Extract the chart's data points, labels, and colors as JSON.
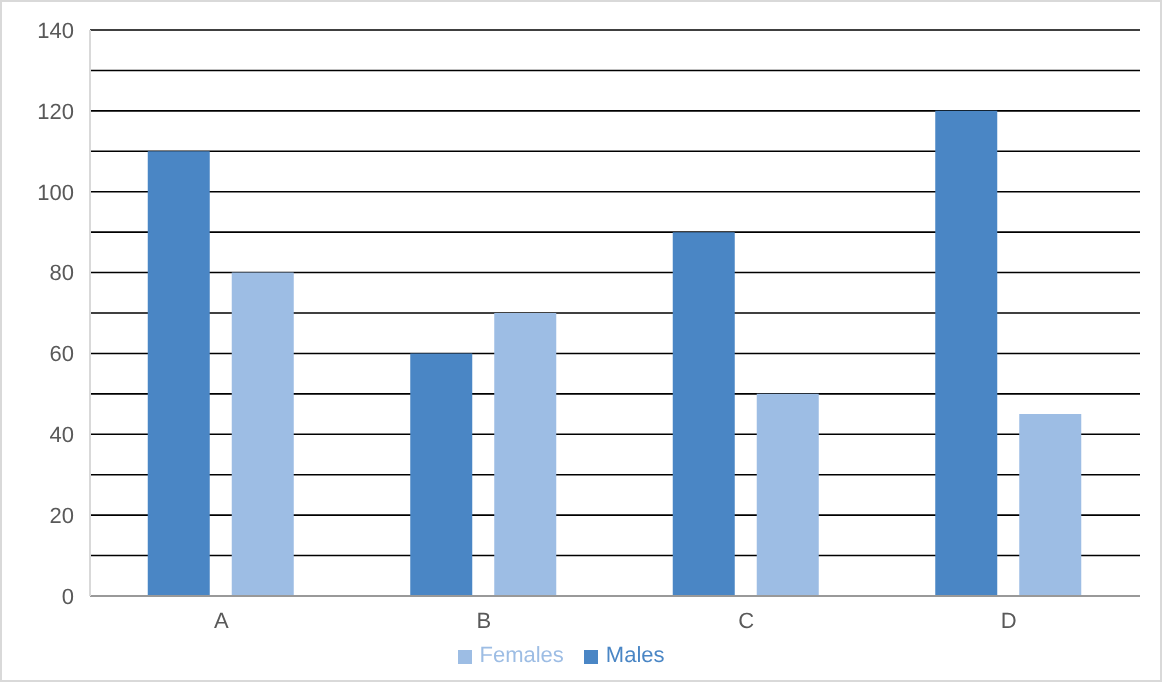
{
  "chart_data": {
    "type": "bar",
    "categories": [
      "A",
      "B",
      "C",
      "D"
    ],
    "series": [
      {
        "name": "Males",
        "color": "#4a86c5",
        "values": [
          110,
          60,
          90,
          120
        ]
      },
      {
        "name": "Females",
        "color": "#9dbde4",
        "values": [
          80,
          70,
          50,
          45
        ]
      }
    ],
    "ylim": [
      0,
      140
    ],
    "yticks": [
      0,
      {
        "value": 10,
        "label": null
      },
      20,
      {
        "value": 30,
        "label": null
      },
      40,
      {
        "value": 50,
        "label": null
      },
      60,
      {
        "value": 70,
        "label": null
      },
      80,
      {
        "value": 90,
        "label": null
      },
      100,
      {
        "value": 110,
        "label": null
      },
      120,
      {
        "value": 130,
        "label": null
      },
      140
    ],
    "grid": "y",
    "legend": "bottom"
  }
}
